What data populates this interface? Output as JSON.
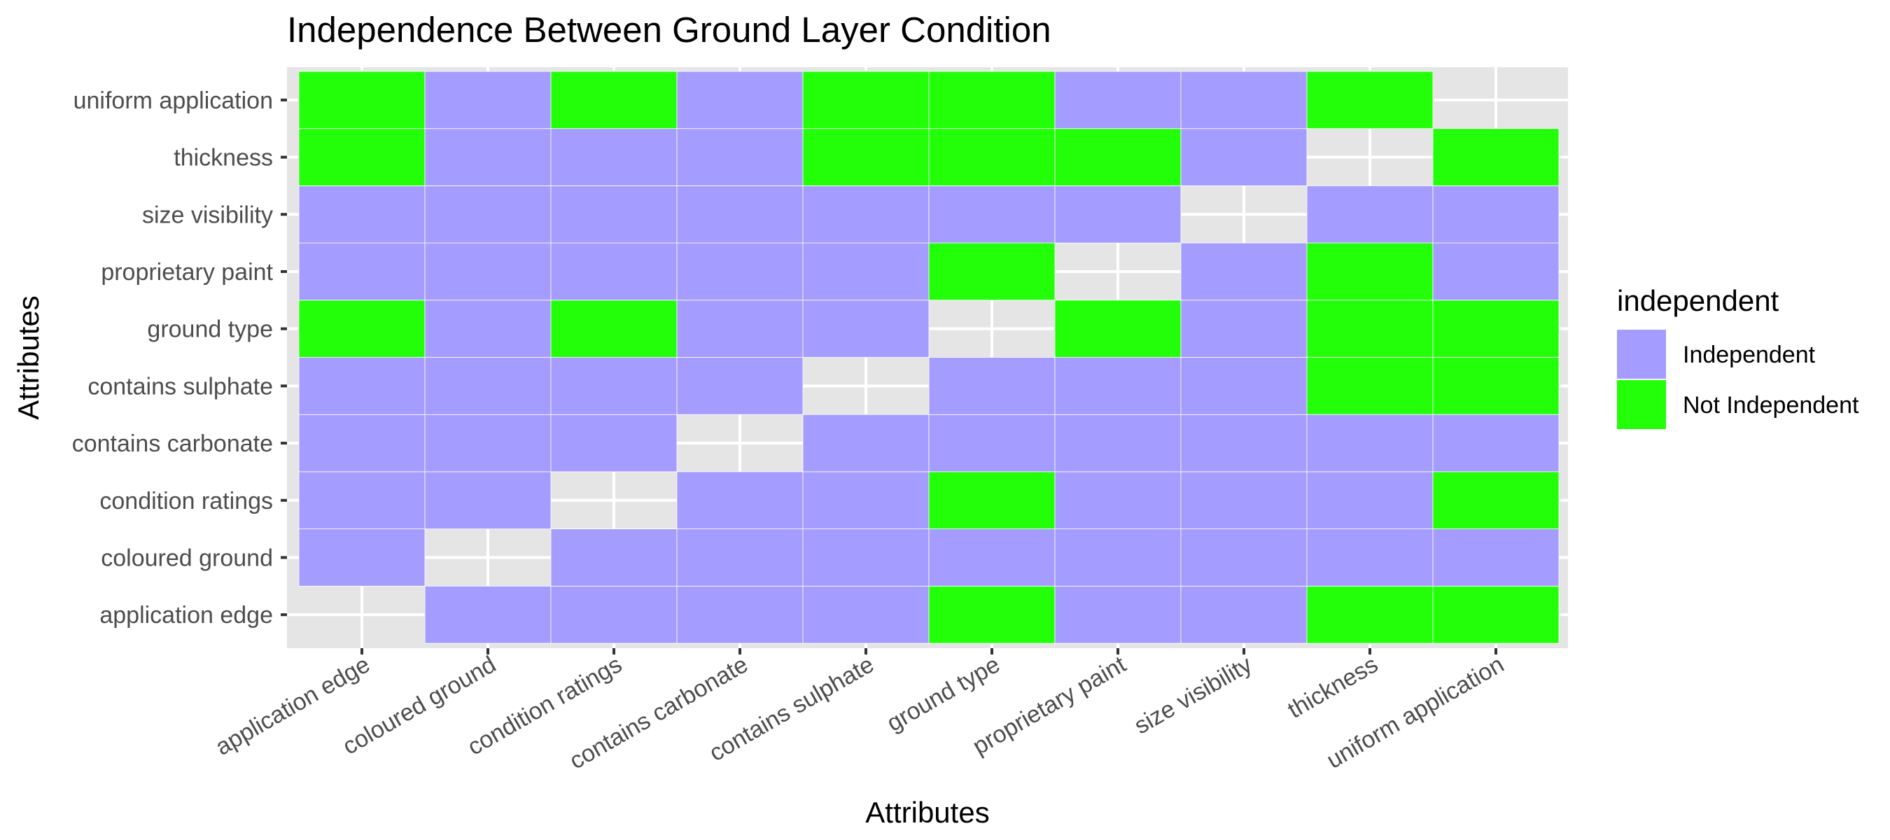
{
  "chart_data": {
    "type": "heatmap",
    "title": "Independence Between Ground Layer Condition",
    "xlabel": "Attributes",
    "ylabel": "Attributes",
    "x_categories": [
      "application edge",
      "coloured ground",
      "condition ratings",
      "contains carbonate",
      "contains sulphate",
      "ground type",
      "proprietary paint",
      "size visibility",
      "thickness",
      "uniform application"
    ],
    "y_categories": [
      "application edge",
      "coloured ground",
      "condition ratings",
      "contains carbonate",
      "contains sulphate",
      "ground type",
      "proprietary paint",
      "size visibility",
      "thickness",
      "uniform application"
    ],
    "legend": {
      "title": "independent",
      "position": "right",
      "entries": [
        {
          "label": "Independent",
          "color": "#a59cff"
        },
        {
          "label": "Not Independent",
          "color": "#22ff09"
        }
      ]
    },
    "cells": [
      {
        "x": "coloured ground",
        "y": "application edge",
        "value": "Independent"
      },
      {
        "x": "condition ratings",
        "y": "application edge",
        "value": "Independent"
      },
      {
        "x": "contains carbonate",
        "y": "application edge",
        "value": "Independent"
      },
      {
        "x": "contains sulphate",
        "y": "application edge",
        "value": "Independent"
      },
      {
        "x": "ground type",
        "y": "application edge",
        "value": "Not Independent"
      },
      {
        "x": "proprietary paint",
        "y": "application edge",
        "value": "Independent"
      },
      {
        "x": "size visibility",
        "y": "application edge",
        "value": "Independent"
      },
      {
        "x": "thickness",
        "y": "application edge",
        "value": "Not Independent"
      },
      {
        "x": "uniform application",
        "y": "application edge",
        "value": "Not Independent"
      },
      {
        "x": "application edge",
        "y": "coloured ground",
        "value": "Independent"
      },
      {
        "x": "condition ratings",
        "y": "coloured ground",
        "value": "Independent"
      },
      {
        "x": "contains carbonate",
        "y": "coloured ground",
        "value": "Independent"
      },
      {
        "x": "contains sulphate",
        "y": "coloured ground",
        "value": "Independent"
      },
      {
        "x": "ground type",
        "y": "coloured ground",
        "value": "Independent"
      },
      {
        "x": "proprietary paint",
        "y": "coloured ground",
        "value": "Independent"
      },
      {
        "x": "size visibility",
        "y": "coloured ground",
        "value": "Independent"
      },
      {
        "x": "thickness",
        "y": "coloured ground",
        "value": "Independent"
      },
      {
        "x": "uniform application",
        "y": "coloured ground",
        "value": "Independent"
      },
      {
        "x": "application edge",
        "y": "condition ratings",
        "value": "Independent"
      },
      {
        "x": "coloured ground",
        "y": "condition ratings",
        "value": "Independent"
      },
      {
        "x": "contains carbonate",
        "y": "condition ratings",
        "value": "Independent"
      },
      {
        "x": "contains sulphate",
        "y": "condition ratings",
        "value": "Independent"
      },
      {
        "x": "ground type",
        "y": "condition ratings",
        "value": "Not Independent"
      },
      {
        "x": "proprietary paint",
        "y": "condition ratings",
        "value": "Independent"
      },
      {
        "x": "size visibility",
        "y": "condition ratings",
        "value": "Independent"
      },
      {
        "x": "thickness",
        "y": "condition ratings",
        "value": "Independent"
      },
      {
        "x": "uniform application",
        "y": "condition ratings",
        "value": "Not Independent"
      },
      {
        "x": "application edge",
        "y": "contains carbonate",
        "value": "Independent"
      },
      {
        "x": "coloured ground",
        "y": "contains carbonate",
        "value": "Independent"
      },
      {
        "x": "condition ratings",
        "y": "contains carbonate",
        "value": "Independent"
      },
      {
        "x": "contains sulphate",
        "y": "contains carbonate",
        "value": "Independent"
      },
      {
        "x": "ground type",
        "y": "contains carbonate",
        "value": "Independent"
      },
      {
        "x": "proprietary paint",
        "y": "contains carbonate",
        "value": "Independent"
      },
      {
        "x": "size visibility",
        "y": "contains carbonate",
        "value": "Independent"
      },
      {
        "x": "thickness",
        "y": "contains carbonate",
        "value": "Independent"
      },
      {
        "x": "uniform application",
        "y": "contains carbonate",
        "value": "Independent"
      },
      {
        "x": "application edge",
        "y": "contains sulphate",
        "value": "Independent"
      },
      {
        "x": "coloured ground",
        "y": "contains sulphate",
        "value": "Independent"
      },
      {
        "x": "condition ratings",
        "y": "contains sulphate",
        "value": "Independent"
      },
      {
        "x": "contains carbonate",
        "y": "contains sulphate",
        "value": "Independent"
      },
      {
        "x": "ground type",
        "y": "contains sulphate",
        "value": "Independent"
      },
      {
        "x": "proprietary paint",
        "y": "contains sulphate",
        "value": "Independent"
      },
      {
        "x": "size visibility",
        "y": "contains sulphate",
        "value": "Independent"
      },
      {
        "x": "thickness",
        "y": "contains sulphate",
        "value": "Not Independent"
      },
      {
        "x": "uniform application",
        "y": "contains sulphate",
        "value": "Not Independent"
      },
      {
        "x": "application edge",
        "y": "ground type",
        "value": "Not Independent"
      },
      {
        "x": "coloured ground",
        "y": "ground type",
        "value": "Independent"
      },
      {
        "x": "condition ratings",
        "y": "ground type",
        "value": "Not Independent"
      },
      {
        "x": "contains carbonate",
        "y": "ground type",
        "value": "Independent"
      },
      {
        "x": "contains sulphate",
        "y": "ground type",
        "value": "Independent"
      },
      {
        "x": "proprietary paint",
        "y": "ground type",
        "value": "Not Independent"
      },
      {
        "x": "size visibility",
        "y": "ground type",
        "value": "Independent"
      },
      {
        "x": "thickness",
        "y": "ground type",
        "value": "Not Independent"
      },
      {
        "x": "uniform application",
        "y": "ground type",
        "value": "Not Independent"
      },
      {
        "x": "application edge",
        "y": "proprietary paint",
        "value": "Independent"
      },
      {
        "x": "coloured ground",
        "y": "proprietary paint",
        "value": "Independent"
      },
      {
        "x": "condition ratings",
        "y": "proprietary paint",
        "value": "Independent"
      },
      {
        "x": "contains carbonate",
        "y": "proprietary paint",
        "value": "Independent"
      },
      {
        "x": "contains sulphate",
        "y": "proprietary paint",
        "value": "Independent"
      },
      {
        "x": "ground type",
        "y": "proprietary paint",
        "value": "Not Independent"
      },
      {
        "x": "size visibility",
        "y": "proprietary paint",
        "value": "Independent"
      },
      {
        "x": "thickness",
        "y": "proprietary paint",
        "value": "Not Independent"
      },
      {
        "x": "uniform application",
        "y": "proprietary paint",
        "value": "Independent"
      },
      {
        "x": "application edge",
        "y": "size visibility",
        "value": "Independent"
      },
      {
        "x": "coloured ground",
        "y": "size visibility",
        "value": "Independent"
      },
      {
        "x": "condition ratings",
        "y": "size visibility",
        "value": "Independent"
      },
      {
        "x": "contains carbonate",
        "y": "size visibility",
        "value": "Independent"
      },
      {
        "x": "contains sulphate",
        "y": "size visibility",
        "value": "Independent"
      },
      {
        "x": "ground type",
        "y": "size visibility",
        "value": "Independent"
      },
      {
        "x": "proprietary paint",
        "y": "size visibility",
        "value": "Independent"
      },
      {
        "x": "thickness",
        "y": "size visibility",
        "value": "Independent"
      },
      {
        "x": "uniform application",
        "y": "size visibility",
        "value": "Independent"
      },
      {
        "x": "application edge",
        "y": "thickness",
        "value": "Not Independent"
      },
      {
        "x": "coloured ground",
        "y": "thickness",
        "value": "Independent"
      },
      {
        "x": "condition ratings",
        "y": "thickness",
        "value": "Independent"
      },
      {
        "x": "contains carbonate",
        "y": "thickness",
        "value": "Independent"
      },
      {
        "x": "contains sulphate",
        "y": "thickness",
        "value": "Not Independent"
      },
      {
        "x": "ground type",
        "y": "thickness",
        "value": "Not Independent"
      },
      {
        "x": "proprietary paint",
        "y": "thickness",
        "value": "Not Independent"
      },
      {
        "x": "size visibility",
        "y": "thickness",
        "value": "Independent"
      },
      {
        "x": "uniform application",
        "y": "thickness",
        "value": "Not Independent"
      },
      {
        "x": "application edge",
        "y": "uniform application",
        "value": "Not Independent"
      },
      {
        "x": "coloured ground",
        "y": "uniform application",
        "value": "Independent"
      },
      {
        "x": "condition ratings",
        "y": "uniform application",
        "value": "Not Independent"
      },
      {
        "x": "contains carbonate",
        "y": "uniform application",
        "value": "Independent"
      },
      {
        "x": "contains sulphate",
        "y": "uniform application",
        "value": "Not Independent"
      },
      {
        "x": "ground type",
        "y": "uniform application",
        "value": "Not Independent"
      },
      {
        "x": "proprietary paint",
        "y": "uniform application",
        "value": "Independent"
      },
      {
        "x": "size visibility",
        "y": "uniform application",
        "value": "Independent"
      },
      {
        "x": "thickness",
        "y": "uniform application",
        "value": "Not Independent"
      }
    ],
    "panel_background": "#e5e5e5",
    "grid": true
  }
}
